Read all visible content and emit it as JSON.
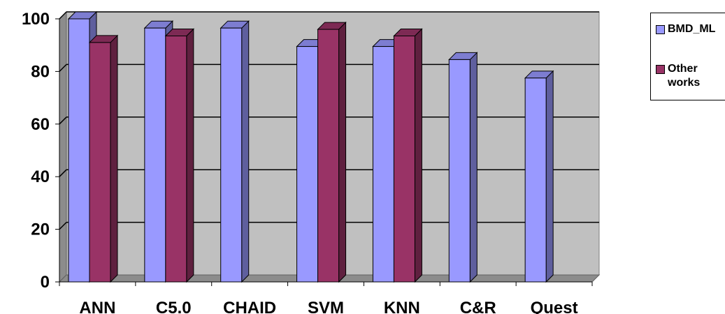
{
  "chart_data": {
    "type": "bar",
    "title": "",
    "xlabel": "",
    "ylabel": "",
    "ylim": [
      0,
      100
    ],
    "yticks": [
      0,
      20,
      40,
      60,
      80,
      100
    ],
    "grid": true,
    "legend_position": "right",
    "categories": [
      "ANN",
      "C5.0",
      "CHAID",
      "SVM",
      "KNN",
      "C&R",
      "Quest"
    ],
    "series": [
      {
        "name": "BMD_ML",
        "color": "#9999ff",
        "values": [
          100,
          96.5,
          96.5,
          89.5,
          89.5,
          84.5,
          77.5
        ]
      },
      {
        "name": "Other works",
        "color": "#993366",
        "values": [
          91,
          93.5,
          null,
          96,
          93.5,
          null,
          null
        ]
      }
    ]
  }
}
